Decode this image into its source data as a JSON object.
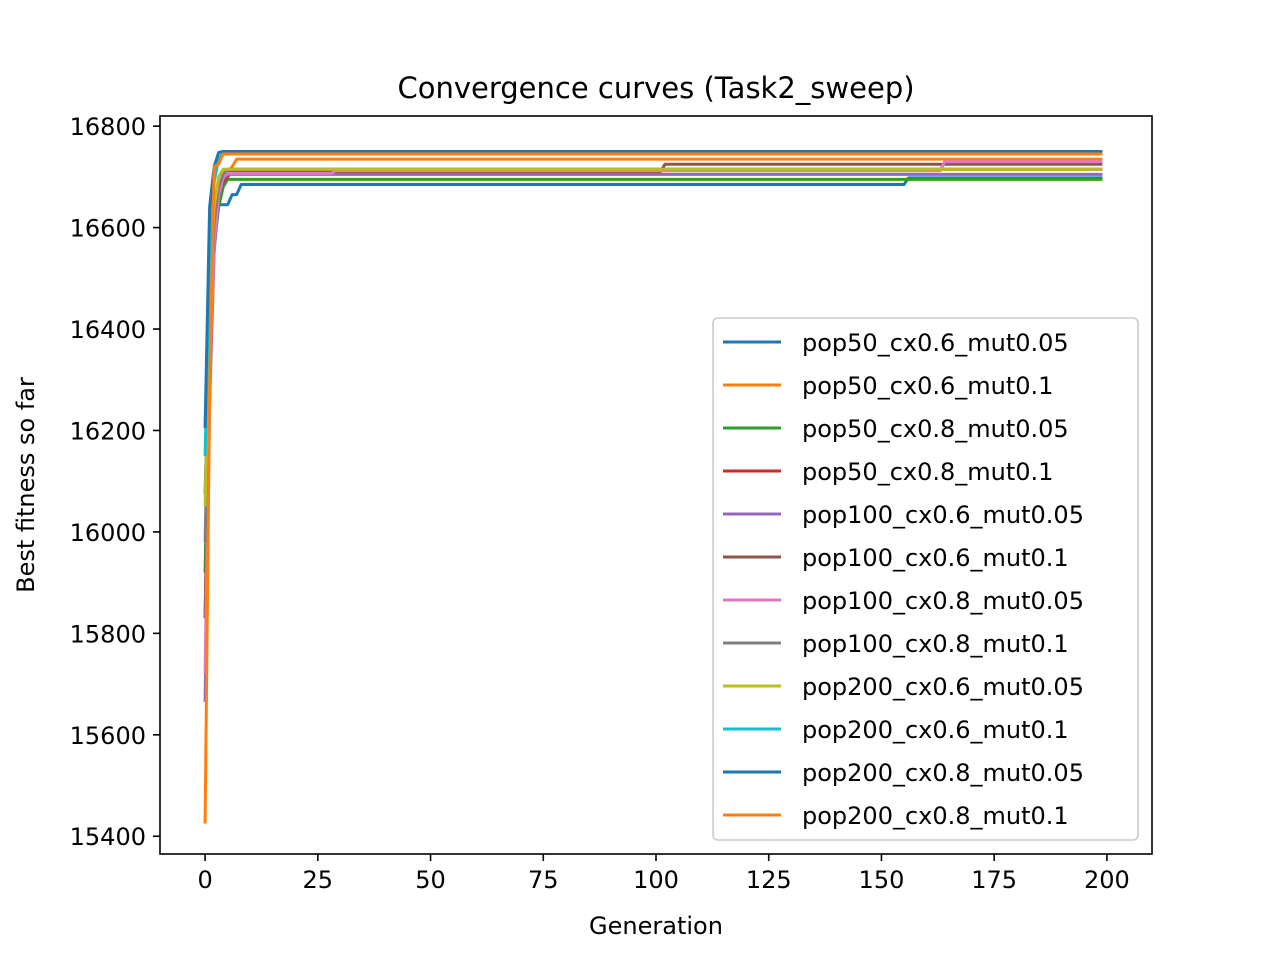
{
  "chart_data": {
    "type": "line",
    "title": "Convergence curves (Task2_sweep)",
    "xlabel": "Generation",
    "ylabel": "Best fitness so far",
    "xlim": [
      -10,
      210
    ],
    "ylim": [
      15365,
      16820
    ],
    "x_ticks": [
      0,
      25,
      50,
      75,
      100,
      125,
      150,
      175,
      200
    ],
    "y_ticks": [
      15400,
      15600,
      15800,
      16000,
      16200,
      16400,
      16600,
      16800
    ],
    "grid": false,
    "legend_position": "lower-right",
    "series": [
      {
        "name": "pop50_cx0.6_mut0.05",
        "color": "#1f77b4",
        "points": [
          [
            0,
            16075
          ],
          [
            1,
            16420
          ],
          [
            2,
            16610
          ],
          [
            3,
            16645
          ],
          [
            4,
            16645
          ],
          [
            5,
            16645
          ],
          [
            6,
            16665
          ],
          [
            7,
            16665
          ],
          [
            8,
            16685
          ],
          [
            155,
            16685
          ],
          [
            156,
            16698
          ],
          [
            199,
            16698
          ]
        ]
      },
      {
        "name": "pop50_cx0.6_mut0.1",
        "color": "#ff7f0e",
        "points": [
          [
            0,
            16210
          ],
          [
            1,
            16480
          ],
          [
            2,
            16620
          ],
          [
            3,
            16680
          ],
          [
            4,
            16700
          ],
          [
            5,
            16710
          ],
          [
            6,
            16720
          ],
          [
            7,
            16735
          ],
          [
            199,
            16735
          ]
        ]
      },
      {
        "name": "pop50_cx0.8_mut0.05",
        "color": "#2ca02c",
        "points": [
          [
            0,
            15920
          ],
          [
            1,
            16380
          ],
          [
            2,
            16560
          ],
          [
            3,
            16640
          ],
          [
            4,
            16680
          ],
          [
            5,
            16695
          ],
          [
            199,
            16695
          ]
        ]
      },
      {
        "name": "pop50_cx0.8_mut0.1",
        "color": "#d62728",
        "points": [
          [
            0,
            15830
          ],
          [
            1,
            16300
          ],
          [
            2,
            16560
          ],
          [
            3,
            16660
          ],
          [
            4,
            16690
          ],
          [
            5,
            16700
          ],
          [
            6,
            16715
          ],
          [
            199,
            16715
          ]
        ]
      },
      {
        "name": "pop100_cx0.6_mut0.05",
        "color": "#9467bd",
        "points": [
          [
            0,
            15665
          ],
          [
            1,
            16250
          ],
          [
            2,
            16550
          ],
          [
            3,
            16660
          ],
          [
            4,
            16695
          ],
          [
            5,
            16705
          ],
          [
            199,
            16705
          ]
        ]
      },
      {
        "name": "pop100_cx0.6_mut0.1",
        "color": "#8c564b",
        "points": [
          [
            0,
            15830
          ],
          [
            1,
            16350
          ],
          [
            2,
            16580
          ],
          [
            3,
            16670
          ],
          [
            4,
            16700
          ],
          [
            5,
            16710
          ],
          [
            101,
            16710
          ],
          [
            102,
            16725
          ],
          [
            199,
            16725
          ]
        ]
      },
      {
        "name": "pop100_cx0.8_mut0.05",
        "color": "#e377c2",
        "points": [
          [
            0,
            15720
          ],
          [
            1,
            16300
          ],
          [
            2,
            16570
          ],
          [
            3,
            16665
          ],
          [
            4,
            16700
          ],
          [
            5,
            16707
          ],
          [
            28,
            16707
          ],
          [
            29,
            16712
          ],
          [
            163,
            16712
          ],
          [
            164,
            16730
          ],
          [
            199,
            16730
          ]
        ]
      },
      {
        "name": "pop100_cx0.8_mut0.1",
        "color": "#7f7f7f",
        "points": [
          [
            0,
            15980
          ],
          [
            1,
            16420
          ],
          [
            2,
            16610
          ],
          [
            3,
            16680
          ],
          [
            4,
            16705
          ],
          [
            5,
            16715
          ],
          [
            199,
            16715
          ]
        ]
      },
      {
        "name": "pop200_cx0.6_mut0.05",
        "color": "#bcbd22",
        "points": [
          [
            0,
            16050
          ],
          [
            1,
            16480
          ],
          [
            2,
            16640
          ],
          [
            3,
            16700
          ],
          [
            4,
            16715
          ],
          [
            199,
            16715
          ]
        ]
      },
      {
        "name": "pop200_cx0.6_mut0.1",
        "color": "#17becf",
        "points": [
          [
            0,
            16150
          ],
          [
            1,
            16560
          ],
          [
            2,
            16690
          ],
          [
            3,
            16735
          ],
          [
            4,
            16748
          ],
          [
            199,
            16748
          ]
        ]
      },
      {
        "name": "pop200_cx0.8_mut0.05",
        "color": "#1f77b4",
        "points": [
          [
            0,
            16205
          ],
          [
            1,
            16640
          ],
          [
            2,
            16720
          ],
          [
            3,
            16748
          ],
          [
            4,
            16750
          ],
          [
            199,
            16750
          ]
        ]
      },
      {
        "name": "pop200_cx0.8_mut0.1",
        "color": "#ff7f0e",
        "points": [
          [
            0,
            15425
          ],
          [
            1,
            16265
          ],
          [
            2,
            16720
          ],
          [
            3,
            16725
          ],
          [
            4,
            16745
          ],
          [
            199,
            16745
          ]
        ]
      }
    ]
  }
}
